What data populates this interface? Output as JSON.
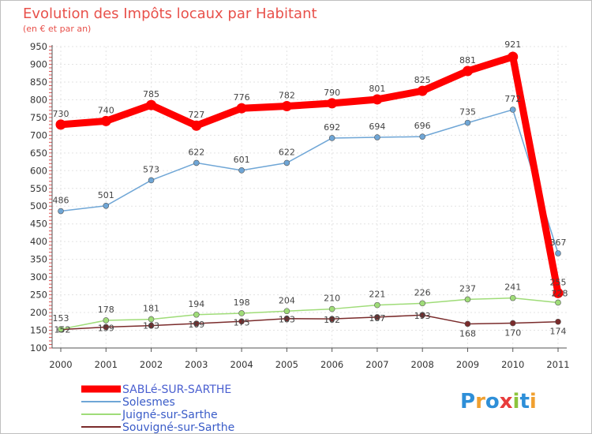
{
  "chart_data": {
    "type": "line",
    "title": "Evolution des Impôts locaux par Habitant",
    "subtitle": "(en € et par an)",
    "xlabel": "",
    "ylabel": "",
    "ylim": [
      100,
      950
    ],
    "yticks": [
      100,
      150,
      200,
      250,
      300,
      350,
      400,
      450,
      500,
      550,
      600,
      650,
      700,
      750,
      800,
      850,
      900,
      950
    ],
    "categories": [
      "2000",
      "2001",
      "2002",
      "2003",
      "2004",
      "2005",
      "2006",
      "2007",
      "2008",
      "2009",
      "2010",
      "2011"
    ],
    "series": [
      {
        "name": "SABLé-SUR-SARTHE",
        "color": "#ff0000",
        "values": [
          730,
          740,
          785,
          727,
          776,
          782,
          790,
          801,
          825,
          881,
          921,
          255
        ]
      },
      {
        "name": "Solesmes",
        "color": "#6fa6d6",
        "values": [
          486,
          501,
          573,
          622,
          601,
          622,
          692,
          694,
          696,
          735,
          772,
          367
        ]
      },
      {
        "name": "Juigné-sur-Sarthe",
        "color": "#9fdc78",
        "values": [
          153,
          178,
          181,
          194,
          198,
          204,
          210,
          221,
          226,
          237,
          241,
          228
        ]
      },
      {
        "name": "Souvigné-sur-Sarthe",
        "color": "#7a2b2b",
        "values": [
          152,
          159,
          163,
          169,
          175,
          183,
          182,
          187,
          193,
          168,
          170,
          174
        ]
      }
    ]
  },
  "branding": {
    "text": "Proxiti",
    "letter_colors": [
      "#2e8fd8",
      "#f0a030",
      "#2e8fd8",
      "#e83c3c",
      "#8cc43c",
      "#2e8fd8",
      "#f0a030"
    ]
  }
}
